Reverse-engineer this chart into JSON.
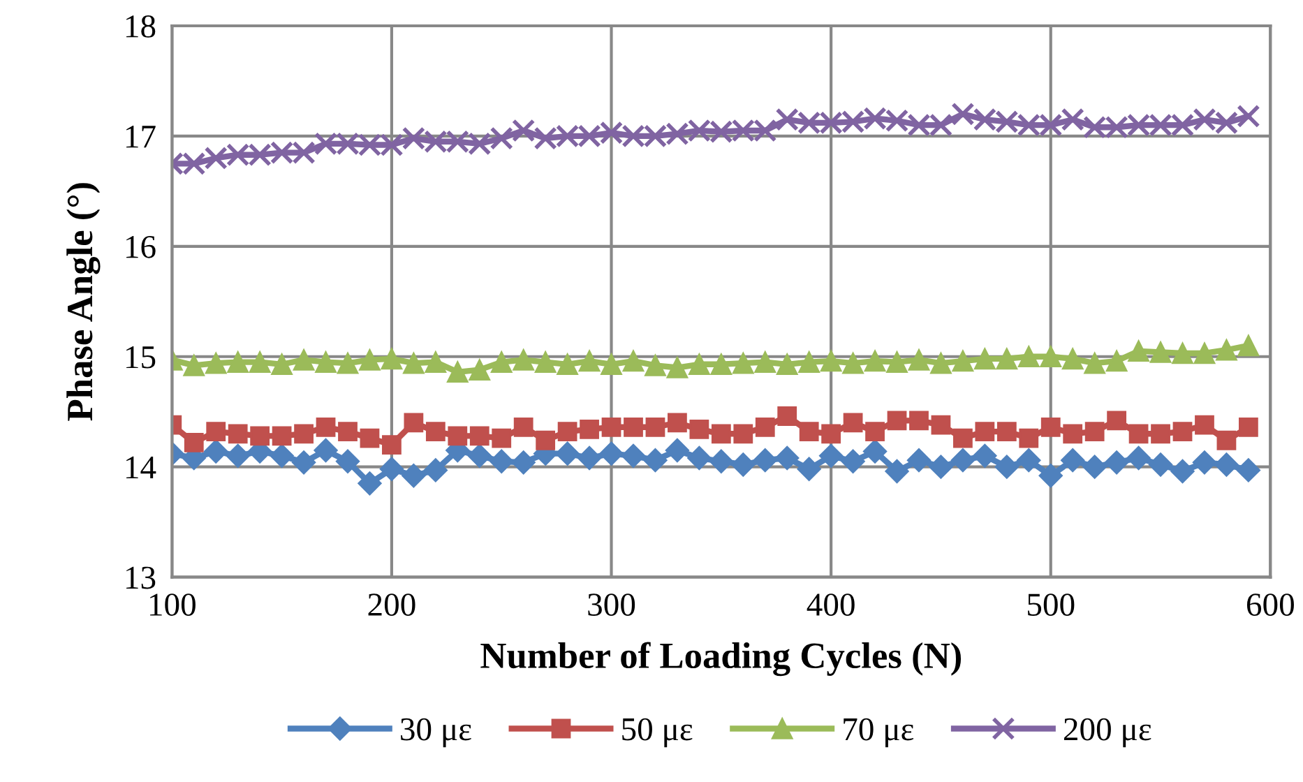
{
  "chart_data": {
    "type": "line",
    "xlabel": "Number of Loading Cycles (N)",
    "ylabel": "Phase Angle (°)",
    "x": [
      100,
      110,
      120,
      130,
      140,
      150,
      160,
      170,
      180,
      190,
      200,
      210,
      220,
      230,
      240,
      250,
      260,
      270,
      280,
      290,
      300,
      310,
      320,
      330,
      340,
      350,
      360,
      370,
      380,
      390,
      400,
      410,
      420,
      430,
      440,
      450,
      460,
      470,
      480,
      490,
      500,
      510,
      520,
      530,
      540,
      550,
      560,
      570,
      580,
      590
    ],
    "xlim": [
      100,
      600
    ],
    "xticks": [
      100,
      200,
      300,
      400,
      500,
      600
    ],
    "ylim": [
      13,
      18
    ],
    "yticks": [
      13,
      14,
      15,
      16,
      17,
      18
    ],
    "grid": true,
    "legend": "bottom",
    "line_style": "solid",
    "series": [
      {
        "name": "30 με",
        "color": "#4f81bd",
        "marker": "diamond",
        "values": [
          14.12,
          14.08,
          14.14,
          14.1,
          14.14,
          14.1,
          14.04,
          14.15,
          14.05,
          13.85,
          13.98,
          13.92,
          13.97,
          14.15,
          14.1,
          14.05,
          14.04,
          14.12,
          14.12,
          14.08,
          14.12,
          14.1,
          14.06,
          14.15,
          14.08,
          14.05,
          14.02,
          14.06,
          14.08,
          13.98,
          14.1,
          14.05,
          14.14,
          13.96,
          14.06,
          14.0,
          14.06,
          14.1,
          14.0,
          14.06,
          13.92,
          14.06,
          14.0,
          14.04,
          14.08,
          14.02,
          13.96,
          14.04,
          14.02,
          13.97
        ]
      },
      {
        "name": "50 με",
        "color": "#c0504d",
        "marker": "square",
        "values": [
          14.38,
          14.22,
          14.32,
          14.3,
          14.28,
          14.28,
          14.3,
          14.36,
          14.32,
          14.26,
          14.2,
          14.4,
          14.32,
          14.28,
          14.28,
          14.26,
          14.36,
          14.24,
          14.32,
          14.34,
          14.36,
          14.36,
          14.36,
          14.4,
          14.34,
          14.3,
          14.3,
          14.36,
          14.46,
          14.32,
          14.3,
          14.4,
          14.32,
          14.42,
          14.42,
          14.38,
          14.26,
          14.32,
          14.32,
          14.26,
          14.36,
          14.3,
          14.32,
          14.42,
          14.3,
          14.3,
          14.32,
          14.38,
          14.24,
          14.36
        ]
      },
      {
        "name": "70 με",
        "color": "#9bbb59",
        "marker": "triangle",
        "values": [
          14.97,
          14.92,
          14.94,
          14.95,
          14.95,
          14.93,
          14.97,
          14.95,
          14.94,
          14.97,
          14.98,
          14.94,
          14.95,
          14.86,
          14.88,
          14.95,
          14.97,
          14.95,
          14.93,
          14.96,
          14.93,
          14.96,
          14.92,
          14.9,
          14.93,
          14.93,
          14.94,
          14.95,
          14.93,
          14.95,
          14.96,
          14.94,
          14.96,
          14.95,
          14.97,
          14.94,
          14.96,
          14.98,
          14.98,
          15.0,
          15.0,
          14.98,
          14.94,
          14.96,
          15.05,
          15.04,
          15.03,
          15.03,
          15.06,
          15.1
        ]
      },
      {
        "name": "200 με",
        "color": "#8064a2",
        "marker": "cross",
        "values": [
          16.75,
          16.75,
          16.8,
          16.83,
          16.83,
          16.85,
          16.85,
          16.93,
          16.93,
          16.92,
          16.92,
          16.98,
          16.95,
          16.95,
          16.93,
          16.98,
          17.05,
          16.98,
          17.0,
          17.0,
          17.03,
          17.0,
          17.0,
          17.02,
          17.05,
          17.04,
          17.05,
          17.05,
          17.15,
          17.12,
          17.12,
          17.13,
          17.16,
          17.14,
          17.1,
          17.1,
          17.2,
          17.15,
          17.13,
          17.1,
          17.1,
          17.15,
          17.08,
          17.08,
          17.1,
          17.1,
          17.1,
          17.15,
          17.12,
          17.18
        ]
      }
    ]
  }
}
